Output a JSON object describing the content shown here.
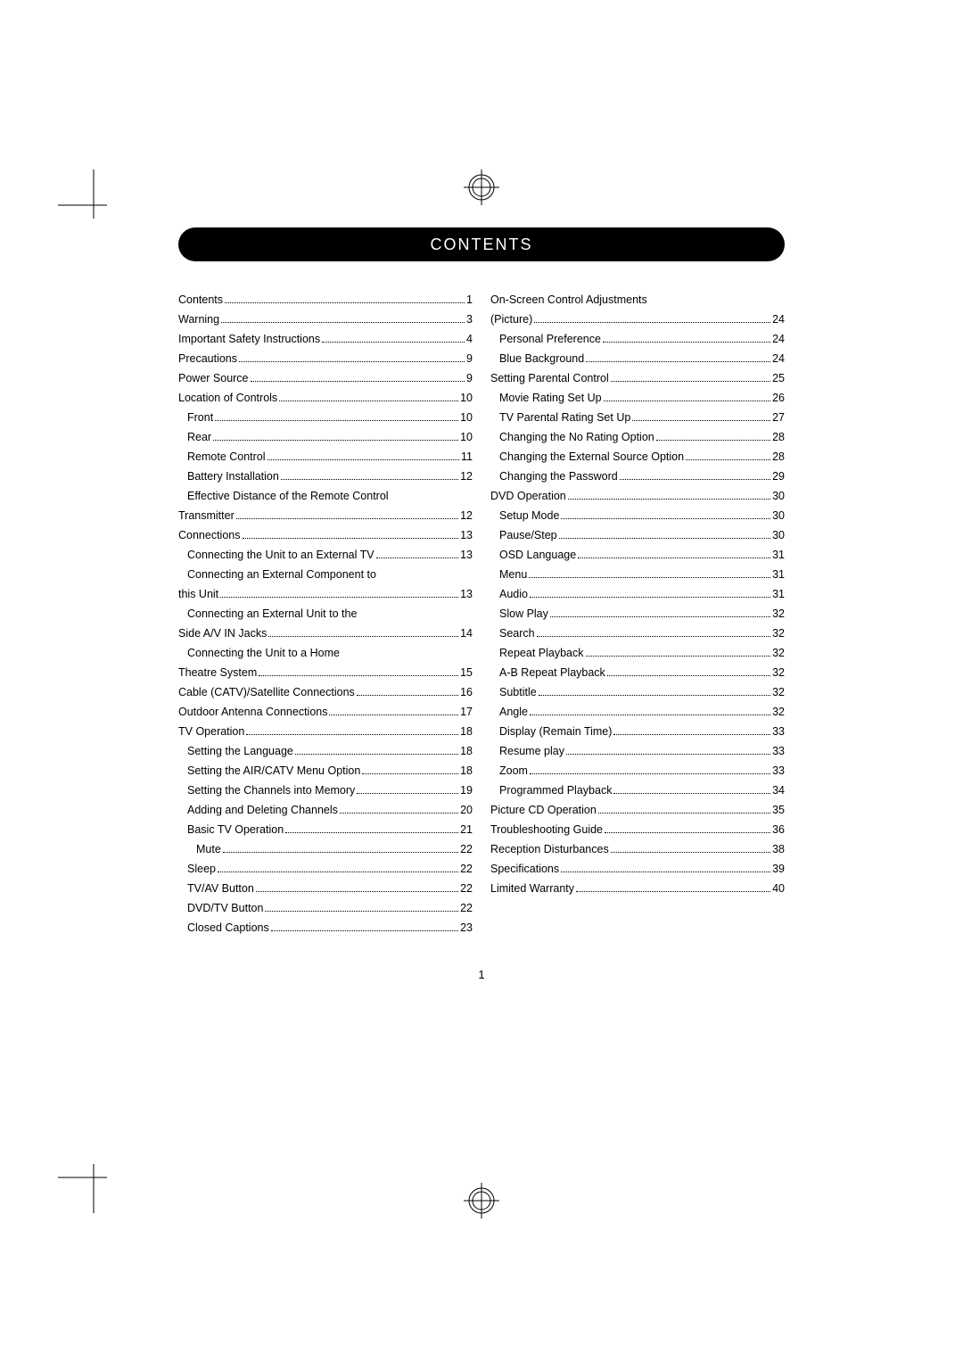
{
  "title": "CONTENTS",
  "page_number": "1",
  "crop_mark_color": "#000000",
  "left": [
    {
      "label": "Contents",
      "page": "1",
      "indent": 0
    },
    {
      "label": "Warning",
      "page": "3",
      "indent": 0
    },
    {
      "label": "Important Safety Instructions",
      "page": "4",
      "indent": 0
    },
    {
      "label": "Precautions",
      "page": "9",
      "indent": 0
    },
    {
      "label": "Power Source",
      "page": "9",
      "indent": 0
    },
    {
      "label": "Location of Controls",
      "page": "10",
      "indent": 0
    },
    {
      "label": "Front",
      "page": "10",
      "indent": 1
    },
    {
      "label": "Rear",
      "page": "10",
      "indent": 1
    },
    {
      "label": "Remote Control",
      "page": "11",
      "indent": 1
    },
    {
      "label": "Battery Installation",
      "page": "12",
      "indent": 1
    },
    {
      "label": "Effective Distance of the Remote Control",
      "page": "",
      "indent": 1,
      "nopage": true
    },
    {
      "label": "Transmitter",
      "page": "12",
      "indent": 0
    },
    {
      "label": "Connections",
      "page": "13",
      "indent": 0
    },
    {
      "label": "Connecting the Unit to an External TV",
      "page": "13",
      "indent": 1
    },
    {
      "label": "Connecting an External Component to",
      "page": "",
      "indent": 1,
      "nopage": true
    },
    {
      "label": "this Unit",
      "page": "13",
      "indent": 0
    },
    {
      "label": "Connecting an External Unit to the",
      "page": "",
      "indent": 1,
      "nopage": true
    },
    {
      "label": "Side A/V IN Jacks",
      "page": "14",
      "indent": 0
    },
    {
      "label": "Connecting the Unit to a Home",
      "page": "",
      "indent": 1,
      "nopage": true
    },
    {
      "label": "Theatre System",
      "page": "15",
      "indent": 0
    },
    {
      "label": "Cable (CATV)/Satellite Connections",
      "page": "16",
      "indent": 0
    },
    {
      "label": "Outdoor Antenna Connections",
      "page": "17",
      "indent": 0
    },
    {
      "label": "TV Operation",
      "page": "18",
      "indent": 0
    },
    {
      "label": "Setting the Language",
      "page": "18",
      "indent": 1
    },
    {
      "label": "Setting the AIR/CATV Menu Option",
      "page": "18",
      "indent": 1
    },
    {
      "label": "Setting the Channels into Memory",
      "page": "19",
      "indent": 1
    },
    {
      "label": "Adding and Deleting Channels",
      "page": "20",
      "indent": 1
    },
    {
      "label": "Basic TV Operation",
      "page": "21",
      "indent": 1
    },
    {
      "label": "Mute",
      "page": "22",
      "indent": 2
    },
    {
      "label": "Sleep",
      "page": "22",
      "indent": 1
    },
    {
      "label": "TV/AV Button",
      "page": "22",
      "indent": 1
    },
    {
      "label": "DVD/TV Button",
      "page": "22",
      "indent": 1
    },
    {
      "label": "Closed Captions",
      "page": "23",
      "indent": 1
    }
  ],
  "right": [
    {
      "label": "On-Screen Control Adjustments",
      "page": "",
      "indent": 0,
      "nopage": true
    },
    {
      "label": "(Picture)",
      "page": "24",
      "indent": 0
    },
    {
      "label": "Personal Preference",
      "page": "24",
      "indent": 1
    },
    {
      "label": "Blue Background",
      "page": "24",
      "indent": 1
    },
    {
      "label": "Setting Parental Control",
      "page": "25",
      "indent": 0
    },
    {
      "label": "Movie Rating Set Up",
      "page": "26",
      "indent": 1
    },
    {
      "label": "TV Parental Rating Set Up",
      "page": "27",
      "indent": 1
    },
    {
      "label": "Changing the No Rating Option",
      "page": "28",
      "indent": 1
    },
    {
      "label": "Changing the External Source Option",
      "page": "28",
      "indent": 1
    },
    {
      "label": "Changing the Password",
      "page": "29",
      "indent": 1
    },
    {
      "label": "DVD Operation",
      "page": "30",
      "indent": 0
    },
    {
      "label": "Setup Mode",
      "page": "30",
      "indent": 1
    },
    {
      "label": "Pause/Step",
      "page": "30",
      "indent": 1
    },
    {
      "label": "OSD Language",
      "page": "31",
      "indent": 1
    },
    {
      "label": "Menu",
      "page": "31",
      "indent": 1
    },
    {
      "label": "Audio",
      "page": "31",
      "indent": 1
    },
    {
      "label": "Slow Play",
      "page": "32",
      "indent": 1
    },
    {
      "label": "Search",
      "page": "32",
      "indent": 1
    },
    {
      "label": "Repeat Playback",
      "page": "32",
      "indent": 1
    },
    {
      "label": "A-B Repeat Playback",
      "page": "32",
      "indent": 1
    },
    {
      "label": "Subtitle",
      "page": "32",
      "indent": 1
    },
    {
      "label": "Angle",
      "page": "32",
      "indent": 1
    },
    {
      "label": "Display (Remain Time)",
      "page": "33",
      "indent": 1
    },
    {
      "label": "Resume play",
      "page": "33",
      "indent": 1
    },
    {
      "label": "Zoom",
      "page": "33",
      "indent": 1
    },
    {
      "label": "Programmed Playback",
      "page": "34",
      "indent": 1
    },
    {
      "label": "Picture CD Operation",
      "page": "35",
      "indent": 0
    },
    {
      "label": "Troubleshooting Guide",
      "page": "36",
      "indent": 0
    },
    {
      "label": "Reception Disturbances",
      "page": "38",
      "indent": 0
    },
    {
      "label": "Specifications",
      "page": "39",
      "indent": 0
    },
    {
      "label": "Limited Warranty",
      "page": "40",
      "indent": 0
    }
  ]
}
